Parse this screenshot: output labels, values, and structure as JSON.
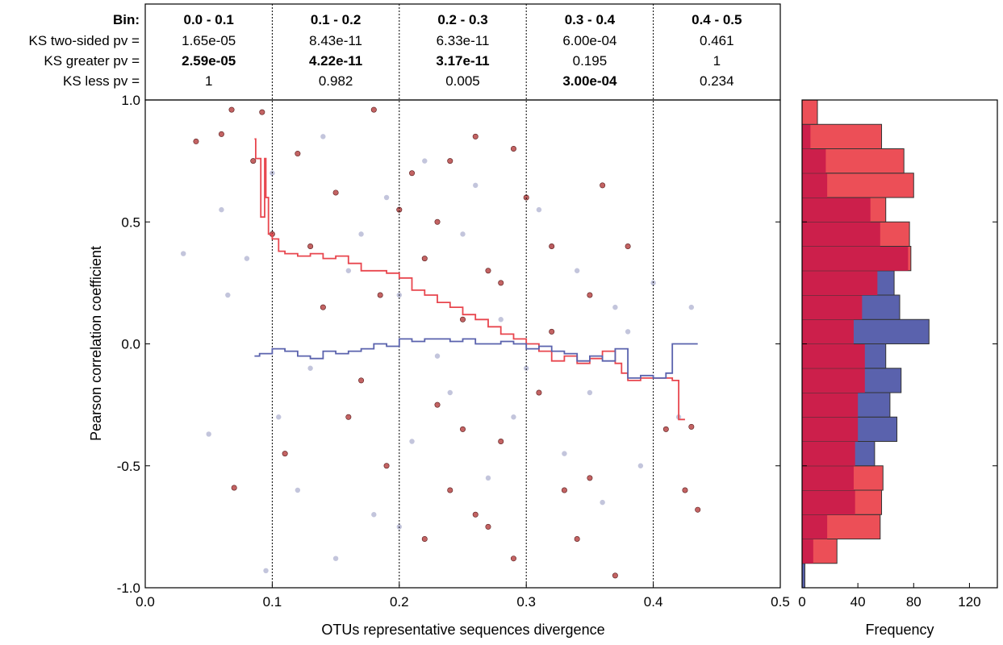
{
  "stats_table": {
    "row_labels": [
      "Bin:",
      "KS two-sided pv =",
      "KS greater pv =",
      "KS less pv ="
    ],
    "bins": [
      {
        "label": "0.0 - 0.1",
        "two_sided": "1.65e-05",
        "greater": "2.59e-05",
        "less": "1",
        "greater_bold": true,
        "less_bold": false
      },
      {
        "label": "0.1 - 0.2",
        "two_sided": "8.43e-11",
        "greater": "4.22e-11",
        "less": "0.982",
        "greater_bold": true,
        "less_bold": false
      },
      {
        "label": "0.2 - 0.3",
        "two_sided": "6.33e-11",
        "greater": "3.17e-11",
        "less": "0.005",
        "greater_bold": true,
        "less_bold": false
      },
      {
        "label": "0.3 - 0.4",
        "two_sided": "6.00e-04",
        "greater": "0.195",
        "less": "3.00e-04",
        "greater_bold": false,
        "less_bold": true
      },
      {
        "label": "0.4 - 0.5",
        "two_sided": "0.461",
        "greater": "1",
        "less": "0.234",
        "greater_bold": false,
        "less_bold": false
      }
    ]
  },
  "colors": {
    "red_series": "#e8464e",
    "blue_series": "#5a62ad",
    "red_points": "#b84848",
    "blue_points": "#b8bbd6",
    "hist_red": "#ec4f57",
    "hist_blue": "#5a62ad",
    "hist_overlap": "#cc1f4b"
  },
  "chart_data": [
    {
      "type": "scatter",
      "xlabel": "OTUs representative sequences divergence",
      "ylabel": "Pearson correlation coefficient",
      "xlim": [
        0.0,
        0.5
      ],
      "ylim": [
        -1.0,
        1.0
      ],
      "xticks": [
        "0.0",
        "0.1",
        "0.2",
        "0.3",
        "0.4",
        "0.5"
      ],
      "yticks": [
        "-1.0",
        "-0.5",
        "0.0",
        "0.5",
        "1.0"
      ],
      "bin_dividers": [
        0.1,
        0.2,
        0.3,
        0.4
      ],
      "series": [
        {
          "kind": "line",
          "x": [
            0.086,
            0.087,
            0.09,
            0.091,
            0.093,
            0.094,
            0.095,
            0.097,
            0.1,
            0.105,
            0.11,
            0.12,
            0.13,
            0.14,
            0.15,
            0.16,
            0.17,
            0.18,
            0.19,
            0.2,
            0.21,
            0.22,
            0.23,
            0.24,
            0.25,
            0.26,
            0.27,
            0.28,
            0.29,
            0.3,
            0.31,
            0.32,
            0.33,
            0.34,
            0.35,
            0.36,
            0.37,
            0.375,
            0.38,
            0.39,
            0.4,
            0.41,
            0.415,
            0.42,
            0.425
          ],
          "y": [
            0.84,
            0.76,
            0.76,
            0.52,
            0.52,
            0.76,
            0.6,
            0.45,
            0.43,
            0.38,
            0.37,
            0.36,
            0.37,
            0.35,
            0.36,
            0.33,
            0.3,
            0.3,
            0.29,
            0.27,
            0.22,
            0.2,
            0.17,
            0.15,
            0.12,
            0.1,
            0.07,
            0.04,
            0.02,
            0.0,
            -0.03,
            -0.07,
            -0.05,
            -0.08,
            -0.06,
            -0.03,
            -0.08,
            -0.12,
            -0.15,
            -0.14,
            -0.14,
            -0.14,
            -0.15,
            -0.31,
            -0.31
          ]
        },
        {
          "kind": "line",
          "x": [
            0.086,
            0.09,
            0.1,
            0.11,
            0.12,
            0.13,
            0.14,
            0.15,
            0.16,
            0.17,
            0.18,
            0.19,
            0.2,
            0.21,
            0.22,
            0.23,
            0.24,
            0.25,
            0.26,
            0.27,
            0.28,
            0.29,
            0.3,
            0.31,
            0.32,
            0.33,
            0.34,
            0.35,
            0.36,
            0.37,
            0.38,
            0.39,
            0.4,
            0.41,
            0.415,
            0.42,
            0.435
          ],
          "y": [
            -0.05,
            -0.04,
            -0.02,
            -0.03,
            -0.05,
            -0.06,
            -0.03,
            -0.04,
            -0.03,
            -0.02,
            0.0,
            -0.01,
            0.02,
            0.01,
            0.02,
            0.02,
            0.01,
            0.02,
            0.0,
            0.0,
            0.01,
            0.0,
            -0.02,
            -0.01,
            -0.03,
            -0.04,
            -0.07,
            -0.05,
            -0.07,
            -0.02,
            -0.14,
            -0.13,
            -0.14,
            -0.12,
            0.0,
            0.0,
            0.0
          ]
        },
        {
          "kind": "points",
          "x": [
            0.04,
            0.06,
            0.068,
            0.07,
            0.085,
            0.092,
            0.1,
            0.12,
            0.13,
            0.15,
            0.16,
            0.18,
            0.185,
            0.19,
            0.21,
            0.22,
            0.23,
            0.24,
            0.25,
            0.26,
            0.27,
            0.28,
            0.29,
            0.3,
            0.31,
            0.32,
            0.33,
            0.34,
            0.35,
            0.36,
            0.37,
            0.38,
            0.41,
            0.425,
            0.43,
            0.435,
            0.11,
            0.14,
            0.17,
            0.2,
            0.23,
            0.26,
            0.29,
            0.32,
            0.35,
            0.22,
            0.25,
            0.28,
            0.24,
            0.27
          ],
          "y": [
            0.83,
            0.86,
            0.96,
            -0.59,
            0.75,
            0.95,
            0.45,
            0.78,
            0.4,
            0.62,
            -0.3,
            0.96,
            0.2,
            -0.5,
            0.7,
            -0.8,
            0.5,
            -0.6,
            0.1,
            -0.7,
            0.3,
            -0.4,
            0.8,
            0.6,
            -0.2,
            0.4,
            -0.6,
            -0.8,
            0.2,
            0.65,
            -0.95,
            0.4,
            -0.35,
            -0.6,
            -0.34,
            -0.68,
            -0.45,
            0.15,
            -0.15,
            0.55,
            -0.25,
            0.85,
            -0.88,
            0.05,
            -0.55,
            0.35,
            -0.35,
            0.25,
            0.75,
            -0.75
          ]
        },
        {
          "kind": "points",
          "x": [
            0.03,
            0.05,
            0.06,
            0.065,
            0.08,
            0.095,
            0.1,
            0.105,
            0.12,
            0.14,
            0.15,
            0.16,
            0.18,
            0.19,
            0.2,
            0.21,
            0.22,
            0.24,
            0.25,
            0.27,
            0.28,
            0.3,
            0.31,
            0.33,
            0.34,
            0.36,
            0.37,
            0.39,
            0.4,
            0.42,
            0.43,
            0.13,
            0.17,
            0.23,
            0.26,
            0.29,
            0.32,
            0.35,
            0.38,
            0.2
          ],
          "y": [
            0.37,
            -0.37,
            0.55,
            0.2,
            0.35,
            -0.93,
            0.7,
            -0.3,
            -0.6,
            0.85,
            -0.88,
            0.3,
            -0.7,
            0.6,
            0.2,
            -0.4,
            0.75,
            -0.2,
            0.45,
            -0.55,
            0.1,
            -0.1,
            0.55,
            -0.45,
            0.3,
            -0.65,
            0.15,
            -0.5,
            0.25,
            -0.3,
            0.15,
            -0.1,
            0.45,
            -0.05,
            0.65,
            -0.3,
            0.4,
            -0.2,
            0.05,
            -0.75
          ]
        }
      ]
    },
    {
      "type": "bar",
      "orientation": "horizontal",
      "xlabel": "Frequency",
      "xlim": [
        0,
        140
      ],
      "ylim": [
        -1.0,
        1.0
      ],
      "xticks": [
        "0",
        "40",
        "80",
        "120"
      ],
      "bin_edges": [
        -1.0,
        -0.9,
        -0.8,
        -0.7,
        -0.6,
        -0.5,
        -0.4,
        -0.3,
        -0.2,
        -0.1,
        0.0,
        0.1,
        0.2,
        0.3,
        0.4,
        0.5,
        0.6,
        0.7,
        0.8,
        0.9,
        1.0
      ],
      "series": [
        {
          "values": [
            2,
            8,
            18,
            38,
            37,
            52,
            68,
            63,
            71,
            60,
            91,
            70,
            66,
            76,
            56,
            49,
            18,
            17,
            6,
            0
          ]
        },
        {
          "values": [
            0,
            25,
            56,
            57,
            58,
            38,
            40,
            40,
            45,
            45,
            37,
            43,
            54,
            78,
            77,
            60,
            80,
            73,
            57,
            11
          ]
        }
      ]
    }
  ]
}
